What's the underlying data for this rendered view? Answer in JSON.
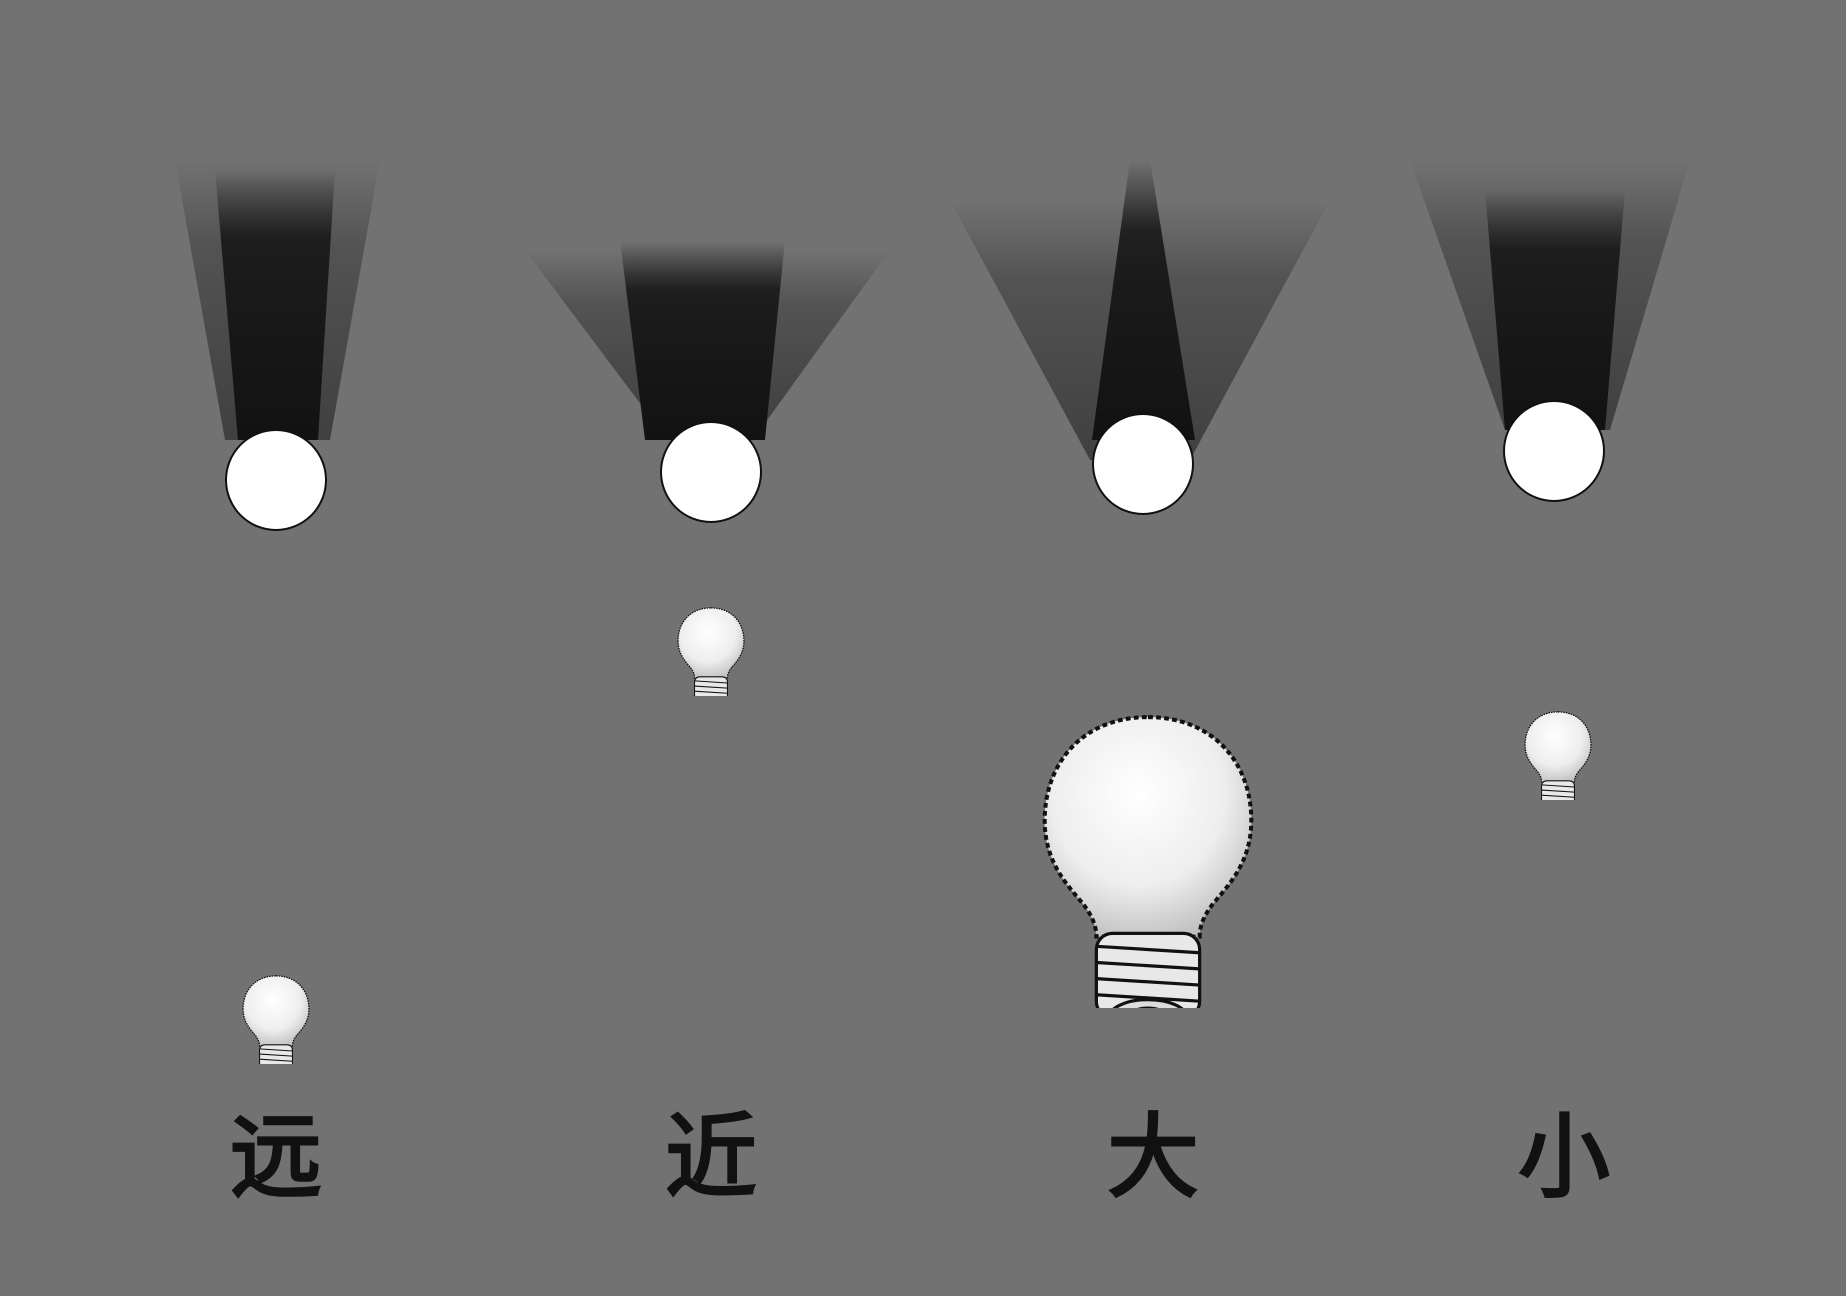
{
  "background": "#727272",
  "panels": [
    {
      "id": "far",
      "label": "远"
    },
    {
      "id": "near",
      "label": "近"
    },
    {
      "id": "large",
      "label": "大"
    },
    {
      "id": "small",
      "label": "小"
    }
  ],
  "colors": {
    "sphere": "#ffffff",
    "shadow_core": "#141414",
    "bulb_glass": "#f2f2f2",
    "outline": "#111111",
    "label": "#111111"
  },
  "icons": [
    "light-bulb-icon",
    "sphere-light-icon",
    "shadow-cone-icon"
  ]
}
